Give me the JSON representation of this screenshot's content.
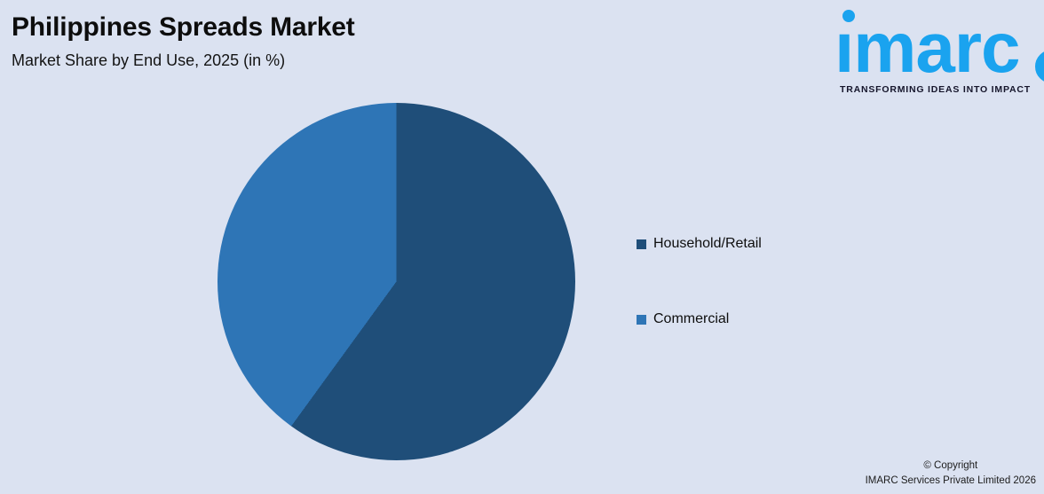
{
  "page": {
    "background_color": "#dbe2f1"
  },
  "header": {
    "title": "Philippines Spreads Market",
    "subtitle": "Market Share by End Use, 2025 (in %)"
  },
  "logo": {
    "wordmark": "ımarc",
    "tagline": "TRANSFORMING IDEAS INTO IMPACT",
    "brand_color": "#1aa3ef",
    "dot_icon": "dot-icon",
    "ring_icon": "partial-ring-icon"
  },
  "chart_data": {
    "type": "pie",
    "title": "Philippines Spreads Market",
    "subtitle": "Market Share by End Use, 2025 (in %)",
    "categories": [
      "Household/Retail",
      "Commercial"
    ],
    "values": [
      60,
      40
    ],
    "colors": [
      "#1f4e79",
      "#2e75b6"
    ],
    "start_angle_deg": 0,
    "direction": "clockwise",
    "legend_position": "right",
    "data_labels": false
  },
  "legend": {
    "items": [
      {
        "label": "Household/Retail",
        "color": "#1f4e79"
      },
      {
        "label": "Commercial",
        "color": "#2e75b6"
      }
    ]
  },
  "footer": {
    "line1": "© Copyright",
    "line2": "IMARC Services Private Limited 2026"
  }
}
